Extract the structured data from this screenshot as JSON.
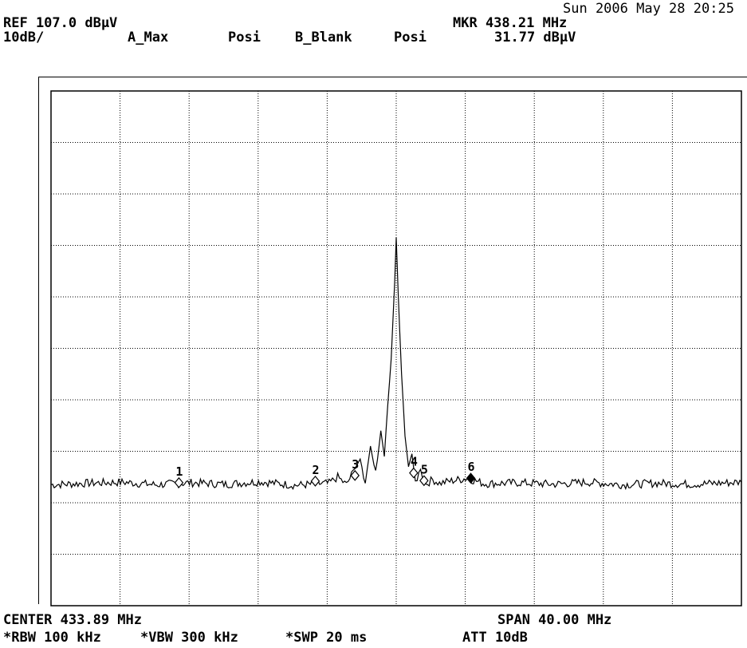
{
  "header": {
    "datetime": "Sun 2006 May 28 20:25",
    "ref_level": "REF 107.0 dBµV",
    "scale": "10dB/",
    "trace_a": "A_Max",
    "trace_a_detector": "Posi",
    "trace_b": "B_Blank",
    "trace_b_detector": "Posi",
    "marker_freq": "MKR 438.21 MHz",
    "marker_level": "31.77 dBµV"
  },
  "footer": {
    "center": "CENTER 433.89 MHz",
    "span": "SPAN 40.00 MHz",
    "rbw": "*RBW 100 kHz",
    "vbw": "*VBW 300 kHz",
    "sweep": "*SWP 20 ms",
    "atten": "ATT 10dB"
  },
  "chart_data": {
    "type": "line",
    "title": "",
    "xlabel": "",
    "ylabel": "",
    "x_unit": "MHz",
    "y_unit": "dBµV",
    "xlim": [
      413.89,
      453.89
    ],
    "ylim": [
      7.0,
      107.0
    ],
    "x_divisions": 10,
    "y_divisions": 10,
    "grid": true,
    "grid_style": "dotted",
    "noise_floor_dbuv": 30.5,
    "series": [
      {
        "trace": "A",
        "color": "#000000",
        "x": [
          413.89,
          416.0,
          418.0,
          420.0,
          422.0,
          424.0,
          426.0,
          428.0,
          430.0,
          430.5,
          431.0,
          431.4,
          431.8,
          432.1,
          432.4,
          432.7,
          433.0,
          433.2,
          433.4,
          433.6,
          433.8,
          433.89,
          434.0,
          434.2,
          434.4,
          434.6,
          434.8,
          435.0,
          435.3,
          435.6,
          436.0,
          436.4,
          437.0,
          438.0,
          439.0,
          441.0,
          443.0,
          445.0,
          447.0,
          449.0,
          451.0,
          453.89
        ],
        "y": [
          30.5,
          30.8,
          31.0,
          30.5,
          30.9,
          30.6,
          31.1,
          30.4,
          30.8,
          32.0,
          30.5,
          33.0,
          35.5,
          31.0,
          38.0,
          32.5,
          41.0,
          36.0,
          46.0,
          55.0,
          70.0,
          78.5,
          68.0,
          52.0,
          40.0,
          34.0,
          36.5,
          31.0,
          33.5,
          30.6,
          31.5,
          30.8,
          31.2,
          31.77,
          30.7,
          30.9,
          30.6,
          31.0,
          30.5,
          30.8,
          30.6,
          31.0
        ]
      }
    ],
    "markers": [
      {
        "label": "1",
        "x": 421.3,
        "y": 30.9,
        "filled": false
      },
      {
        "label": "2",
        "x": 429.2,
        "y": 31.2,
        "filled": false
      },
      {
        "label": "3",
        "x": 431.5,
        "y": 32.3,
        "filled": false
      },
      {
        "label": "4",
        "x": 434.9,
        "y": 32.8,
        "filled": false
      },
      {
        "label": "5",
        "x": 435.5,
        "y": 31.3,
        "filled": false
      },
      {
        "label": "6",
        "x": 438.21,
        "y": 31.77,
        "filled": true
      }
    ]
  }
}
